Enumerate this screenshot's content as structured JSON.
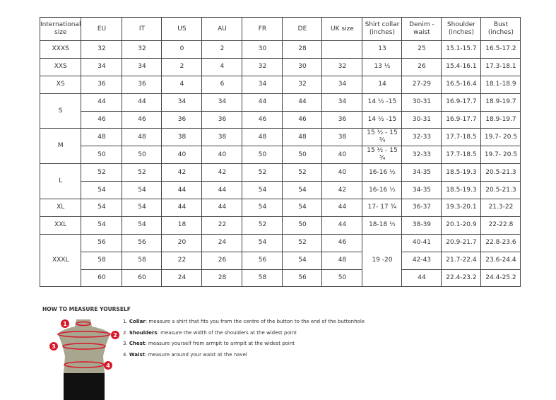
{
  "table": {
    "headers": [
      "International size",
      "EU",
      "IT",
      "US",
      "AU",
      "FR",
      "DE",
      "UK size",
      "Shirt collar (inches)",
      "Denim - waist",
      "Shoulder (inches)",
      "Bust (inches)"
    ],
    "groups": [
      {
        "size": "XXXS",
        "rows": [
          [
            "32",
            "32",
            "0",
            "2",
            "30",
            "28",
            "",
            "13",
            "25",
            "15.1-15.7",
            "16.5-17.2"
          ]
        ]
      },
      {
        "size": "XXS",
        "rows": [
          [
            "34",
            "34",
            "2",
            "4",
            "32",
            "30",
            "32",
            "13 ½",
            "26",
            "15.4-16.1",
            "17.3-18.1"
          ]
        ]
      },
      {
        "size": "XS",
        "rows": [
          [
            "36",
            "36",
            "4",
            "6",
            "34",
            "32",
            "34",
            "14",
            "27-29",
            "16.5-16.4",
            "18.1-18.9"
          ]
        ]
      },
      {
        "size": "S",
        "rows": [
          [
            "44",
            "44",
            "34",
            "34",
            "44",
            "44",
            "34",
            "14 ½ -15",
            "30-31",
            "16.9-17.7",
            "18.9-19.7"
          ],
          [
            "46",
            "46",
            "36",
            "36",
            "46",
            "46",
            "36",
            "14 ½ -15",
            "30-31",
            "16.9-17.7",
            "18.9-19.7"
          ]
        ]
      },
      {
        "size": "M",
        "rows": [
          [
            "48",
            "48",
            "38",
            "38",
            "48",
            "48",
            "38",
            "15 ½ - 15 ¾",
            "32-33",
            "17.7-18.5",
            "19.7- 20.5"
          ],
          [
            "50",
            "50",
            "40",
            "40",
            "50",
            "50",
            "40",
            "15 ½ - 15 ¾",
            "32-33",
            "17.7-18.5",
            "19.7- 20.5"
          ]
        ]
      },
      {
        "size": "L",
        "rows": [
          [
            "52",
            "52",
            "42",
            "42",
            "52",
            "52",
            "40",
            "16-16 ½",
            "34-35",
            "18.5-19.3",
            "20.5-21.3"
          ],
          [
            "54",
            "54",
            "44",
            "44",
            "54",
            "54",
            "42",
            "16-16 ½",
            "34-35",
            "18.5-19.3",
            "20.5-21.3"
          ]
        ]
      },
      {
        "size": "XL",
        "rows": [
          [
            "54",
            "54",
            "44",
            "44",
            "54",
            "54",
            "44",
            "17- 17 ¾",
            "36-37",
            "19.3-20.1",
            "21.3-22"
          ]
        ]
      },
      {
        "size": "XXL",
        "rows": [
          [
            "54",
            "54",
            "18",
            "22",
            "52",
            "50",
            "44",
            "18-18 ½",
            "38-39",
            "20.1-20.9",
            "22-22.8"
          ]
        ]
      },
      {
        "size": "XXXL",
        "collar_merged": "19 -20",
        "rows": [
          [
            "56",
            "56",
            "20",
            "24",
            "54",
            "52",
            "46",
            "40-41",
            "20.9-21.7",
            "22.8-23.6"
          ],
          [
            "58",
            "58",
            "22",
            "26",
            "56",
            "54",
            "48",
            "42-43",
            "21.7-22.4",
            "23.6-24.4"
          ],
          [
            "60",
            "60",
            "24",
            "28",
            "58",
            "56",
            "50",
            "44",
            "22.4-23.2",
            "24.4-25.2"
          ]
        ]
      }
    ]
  },
  "howto": {
    "title": "HOW TO MEASURE YOURSELF",
    "markers": [
      "1",
      "2",
      "3",
      "4"
    ],
    "steps": [
      {
        "num": "1.",
        "term": "Collar",
        "text": ": measure a shirt that fits you from the centre of the button to the end of the buttonhole"
      },
      {
        "num": "2.",
        "term": "Shoulders",
        "text": ": measure the width of the shoulders at the widest point"
      },
      {
        "num": "3.",
        "term": "Chest",
        "text": ": measure yourself from armpit to armpit at the widest point"
      },
      {
        "num": "4.",
        "term": "Waist",
        "text": ": measure around your waist at the navel"
      }
    ],
    "colors": {
      "marker": "#d7182a",
      "torso": "#a9a690",
      "shorts": "#111111"
    }
  }
}
